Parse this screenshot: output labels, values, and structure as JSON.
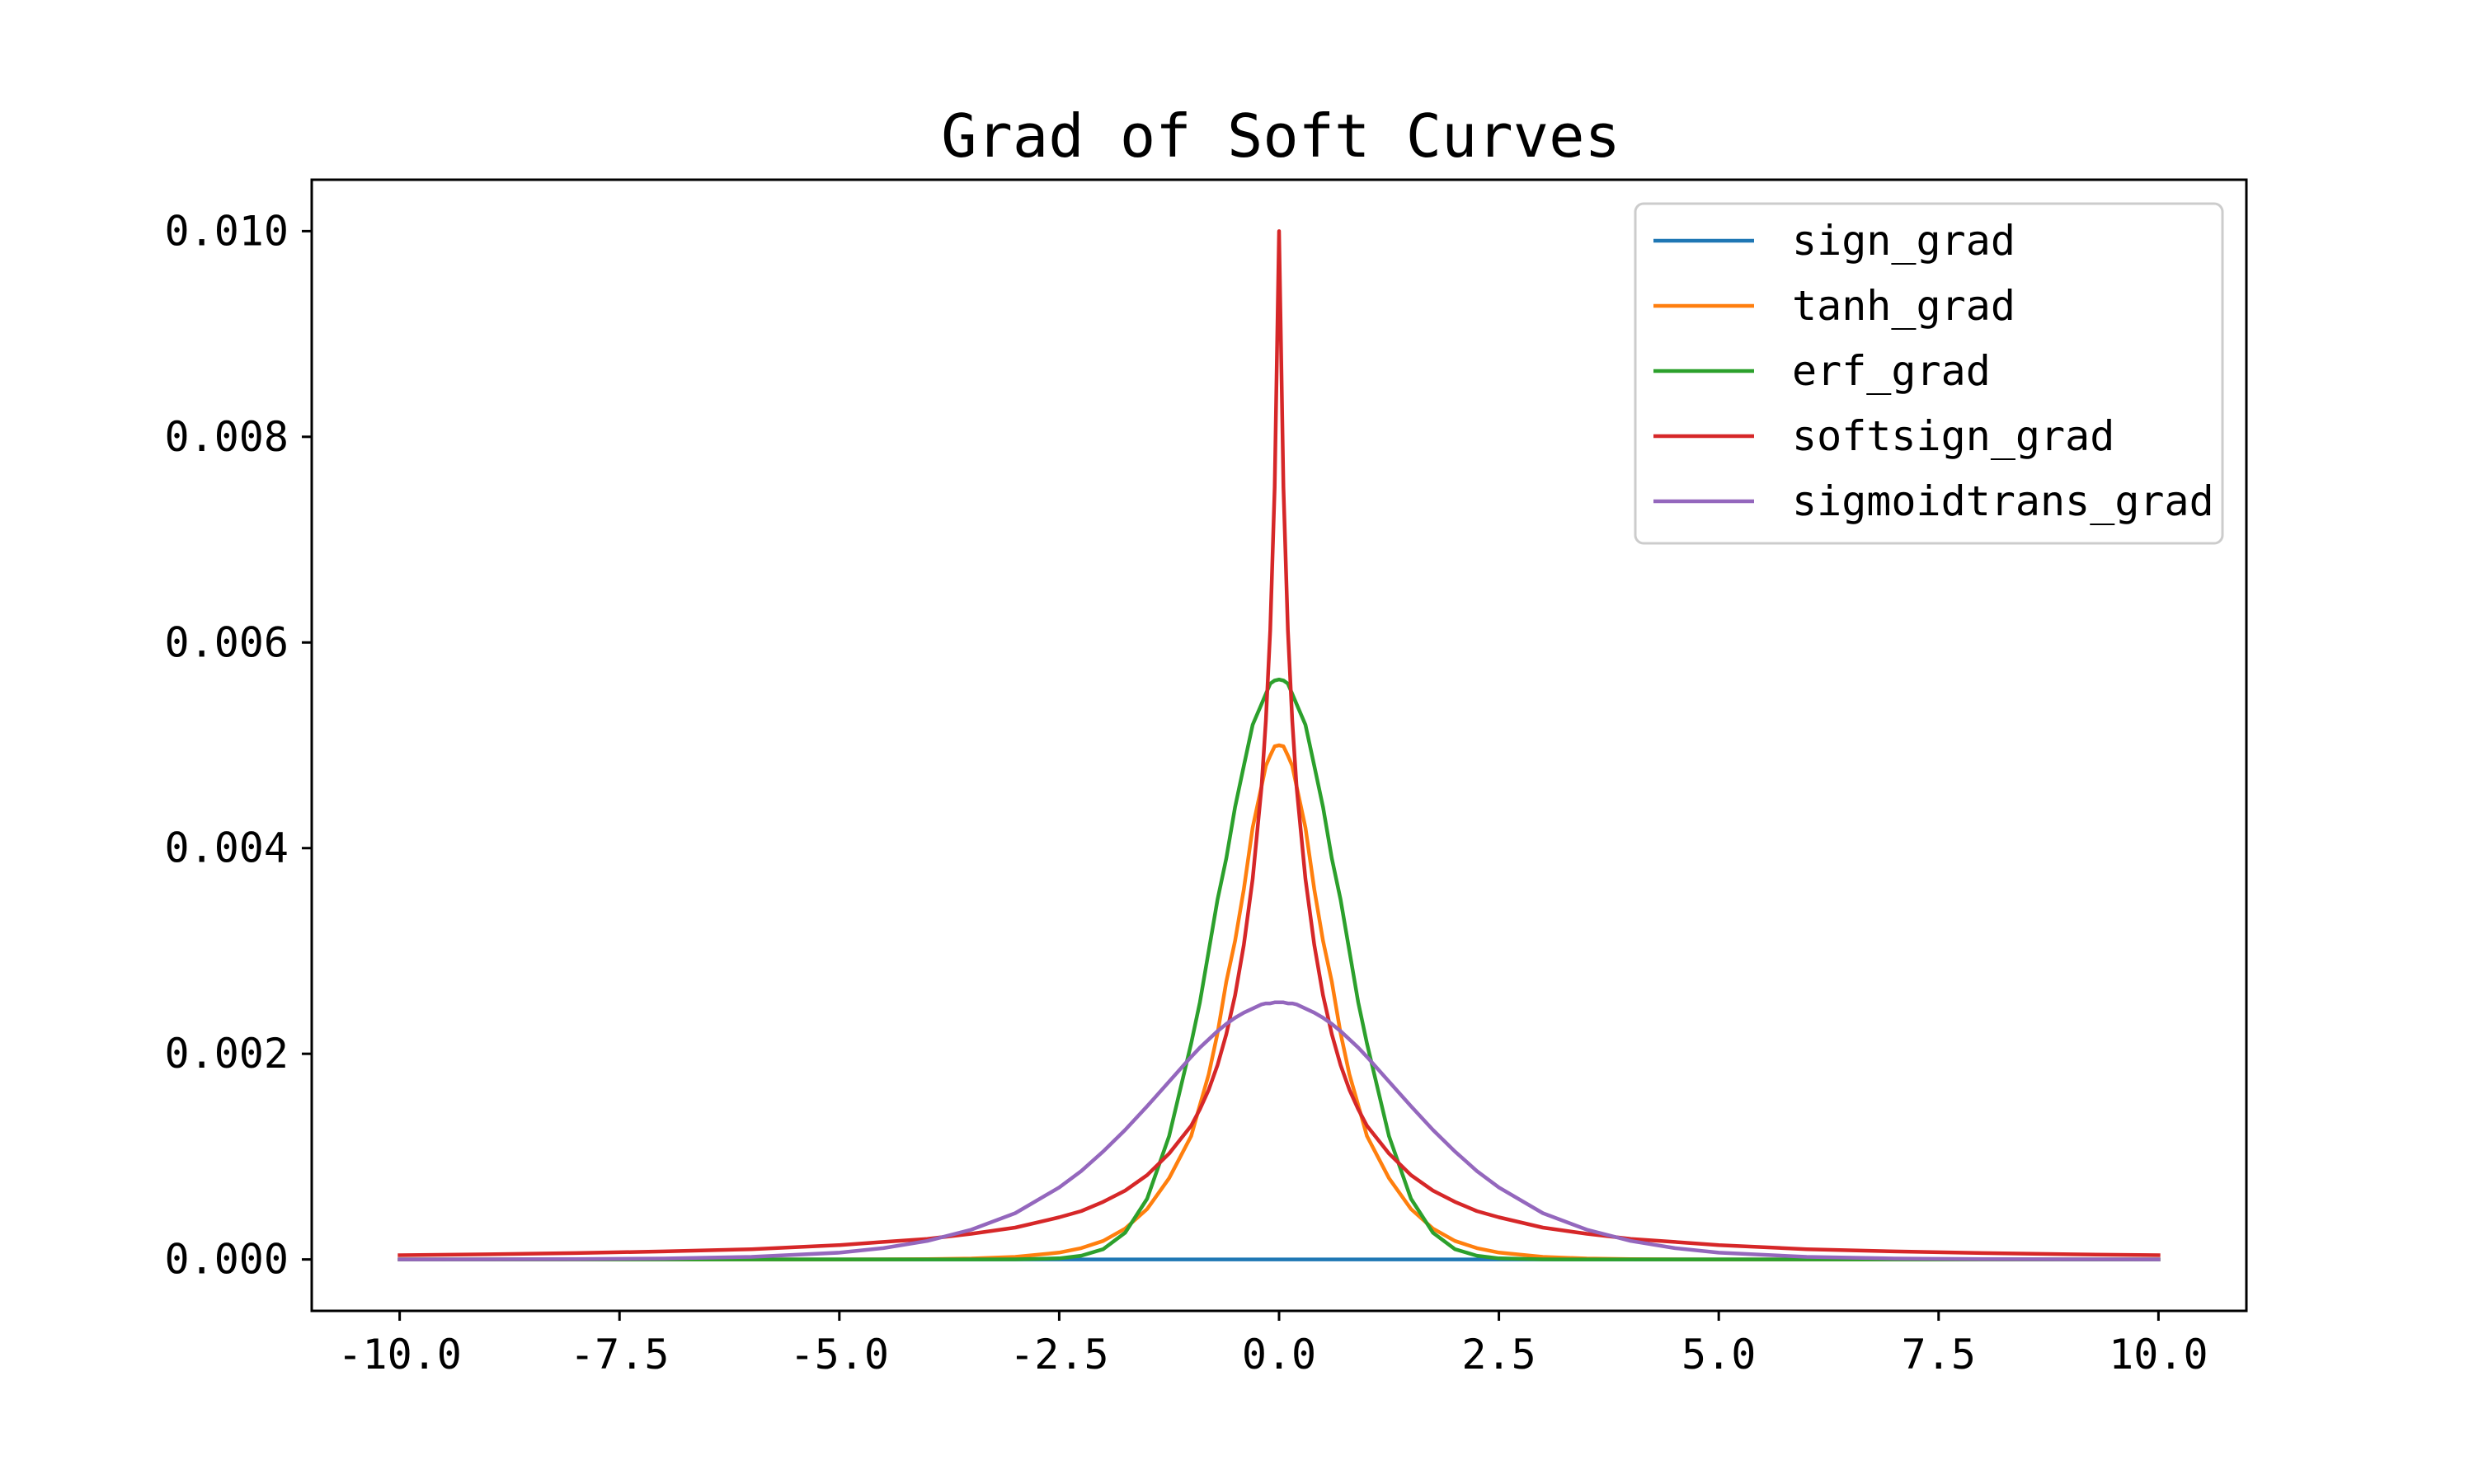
{
  "chart_data": {
    "type": "line",
    "title": "Grad of Soft Curves",
    "xlabel": "",
    "ylabel": "",
    "xlim": [
      -11.0,
      11.0
    ],
    "ylim": [
      -0.0005,
      0.0105
    ],
    "xticks": [
      -10.0,
      -7.5,
      -5.0,
      -2.5,
      0.0,
      2.5,
      5.0,
      7.5,
      10.0
    ],
    "xtick_labels": [
      "-10.0",
      "-7.5",
      "-5.0",
      "-2.5",
      "0.0",
      "2.5",
      "5.0",
      "7.5",
      "10.0"
    ],
    "yticks": [
      0.0,
      0.002,
      0.004,
      0.006,
      0.008,
      0.01
    ],
    "ytick_labels": [
      "0.000",
      "0.002",
      "0.004",
      "0.006",
      "0.008",
      "0.010"
    ],
    "grid": false,
    "legend_position": "top-right",
    "x": [
      -10.0,
      -9.0,
      -8.0,
      -7.0,
      -6.0,
      -5.0,
      -4.5,
      -4.0,
      -3.5,
      -3.0,
      -2.5,
      -2.25,
      -2.0,
      -1.75,
      -1.5,
      -1.25,
      -1.0,
      -0.9,
      -0.8,
      -0.7,
      -0.6,
      -0.5,
      -0.4,
      -0.3,
      -0.2,
      -0.15,
      -0.1,
      -0.05,
      0.0,
      0.05,
      0.1,
      0.15,
      0.2,
      0.3,
      0.4,
      0.5,
      0.6,
      0.7,
      0.8,
      0.9,
      1.0,
      1.25,
      1.5,
      1.75,
      2.0,
      2.25,
      2.5,
      3.0,
      3.5,
      4.0,
      4.5,
      5.0,
      6.0,
      7.0,
      8.0,
      9.0,
      10.0
    ],
    "series": [
      {
        "name": "sign_grad",
        "color": "#1f77b4",
        "values": [
          0,
          0,
          0,
          0,
          0,
          0,
          0,
          0,
          0,
          0,
          0,
          0,
          0,
          0,
          0,
          0,
          0,
          0,
          0,
          0,
          0,
          0,
          0,
          0,
          0,
          0,
          0,
          0,
          0,
          0,
          0,
          0,
          0,
          0,
          0,
          0,
          0,
          0,
          0,
          0,
          0,
          0,
          0,
          0,
          0,
          0,
          0,
          0,
          0,
          0,
          0,
          0,
          0,
          0,
          0,
          0,
          0
        ]
      },
      {
        "name": "tanh_grad",
        "color": "#ff7f0e",
        "values": [
          0.0,
          0.0,
          0.0,
          8e-09,
          6e-08,
          4.5e-07,
          1.2e-06,
          3.4e-06,
          9.1e-06,
          2.5e-05,
          6.7e-05,
          0.00011,
          0.00018,
          0.0003,
          0.00049,
          0.00079,
          0.0012,
          0.0015,
          0.0018,
          0.0022,
          0.0027,
          0.0031,
          0.0036,
          0.0042,
          0.0046,
          0.0048,
          0.0049,
          0.00499,
          0.005,
          0.00499,
          0.0049,
          0.0048,
          0.0046,
          0.0042,
          0.0036,
          0.0031,
          0.0027,
          0.0022,
          0.0018,
          0.0015,
          0.0012,
          0.00079,
          0.00049,
          0.0003,
          0.00018,
          0.00011,
          6.7e-05,
          2.5e-05,
          9.1e-06,
          3.4e-06,
          1.2e-06,
          4.5e-07,
          6e-08,
          8e-09,
          0.0,
          0.0,
          0.0
        ]
      },
      {
        "name": "erf_grad",
        "color": "#2ca02c",
        "values": [
          0.0,
          0.0,
          0.0,
          0.0,
          0.0,
          0.0,
          0.0,
          0.0,
          3e-10,
          7.1e-07,
          1.1e-05,
          3.6e-05,
          0.0001,
          0.00026,
          0.00059,
          0.0012,
          0.0021,
          0.0025,
          0.003,
          0.0035,
          0.0039,
          0.0044,
          0.0048,
          0.0052,
          0.0054,
          0.0055,
          0.0056,
          0.00563,
          0.00564,
          0.00563,
          0.0056,
          0.0055,
          0.0054,
          0.0052,
          0.0048,
          0.0044,
          0.0039,
          0.0035,
          0.003,
          0.0025,
          0.0021,
          0.0012,
          0.00059,
          0.00026,
          0.0001,
          3.6e-05,
          1.1e-05,
          7.1e-07,
          3e-10,
          0.0,
          0.0,
          0.0,
          0.0,
          0.0,
          0.0,
          0.0,
          0.0
        ]
      },
      {
        "name": "softsign_grad",
        "color": "#d62728",
        "values": [
          4.1e-05,
          5e-05,
          6.2e-05,
          7.8e-05,
          0.0001,
          0.00014,
          0.00017,
          0.0002,
          0.00025,
          0.00031,
          0.00041,
          0.00047,
          0.00056,
          0.00067,
          0.00082,
          0.00103,
          0.0013,
          0.00146,
          0.00165,
          0.00189,
          0.00219,
          0.00257,
          0.00306,
          0.0037,
          0.00459,
          0.00524,
          0.00612,
          0.00751,
          0.01,
          0.00751,
          0.00612,
          0.00524,
          0.00459,
          0.0037,
          0.00306,
          0.00257,
          0.00219,
          0.00189,
          0.00165,
          0.00146,
          0.0013,
          0.00103,
          0.00082,
          0.00067,
          0.00056,
          0.00047,
          0.00041,
          0.00031,
          0.00025,
          0.0002,
          0.00017,
          0.00014,
          0.0001,
          7.8e-05,
          6.2e-05,
          5e-05,
          4.1e-05
        ]
      },
      {
        "name": "sigmoidtrans_grad",
        "color": "#9467bd",
        "values": [
          4.5e-07,
          1.2e-06,
          3.4e-06,
          9.1e-06,
          2.5e-05,
          6.6e-05,
          0.00011,
          0.00018,
          0.00029,
          0.00045,
          0.0007,
          0.00086,
          0.00105,
          0.00126,
          0.00149,
          0.00173,
          0.00197,
          0.00206,
          0.00214,
          0.00222,
          0.00229,
          0.00235,
          0.0024,
          0.00244,
          0.00248,
          0.00249,
          0.00249,
          0.0025,
          0.0025,
          0.0025,
          0.00249,
          0.00249,
          0.00248,
          0.00244,
          0.0024,
          0.00235,
          0.00229,
          0.00222,
          0.00214,
          0.00206,
          0.00197,
          0.00173,
          0.00149,
          0.00126,
          0.00105,
          0.00086,
          0.0007,
          0.00045,
          0.00029,
          0.00018,
          0.00011,
          6.6e-05,
          2.5e-05,
          9.1e-06,
          3.4e-06,
          1.2e-06,
          4.5e-07
        ]
      }
    ]
  }
}
